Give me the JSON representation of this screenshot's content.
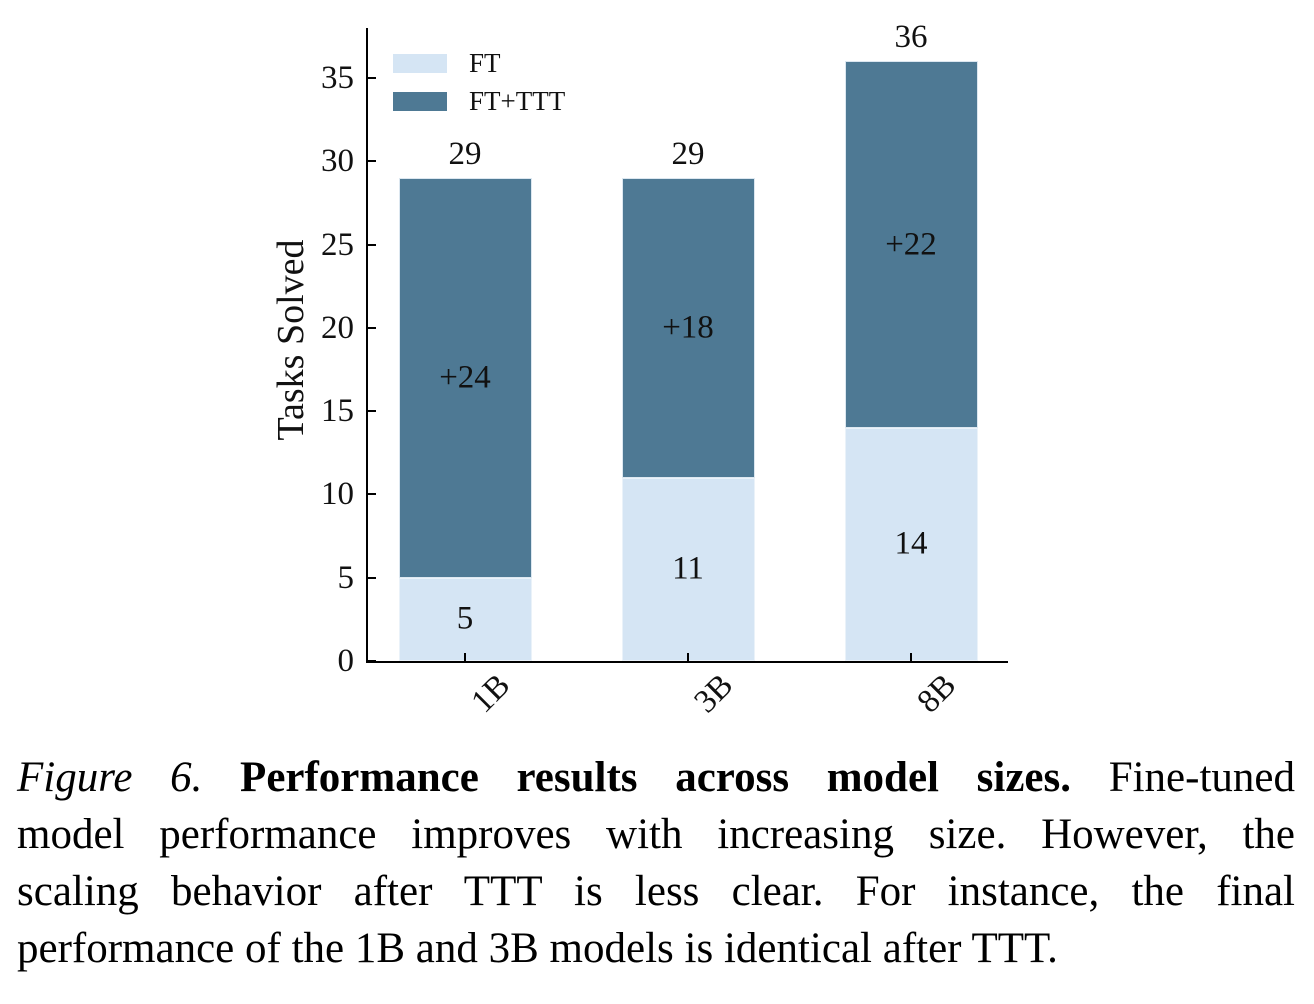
{
  "chart_data": {
    "type": "bar",
    "stacked": true,
    "title": "",
    "xlabel": "",
    "ylabel": "Tasks Solved",
    "categories": [
      "1B",
      "3B",
      "8B"
    ],
    "series": [
      {
        "name": "FT",
        "color": "#d5e5f4",
        "values": [
          5,
          11,
          14
        ],
        "bar_labels": [
          "5",
          "11",
          "14"
        ]
      },
      {
        "name": "FT+TTT",
        "color": "#4e7994",
        "values": [
          24,
          18,
          22
        ],
        "bar_labels": [
          "+24",
          "+18",
          "+22"
        ]
      }
    ],
    "totals": [
      "29",
      "29",
      "36"
    ],
    "ylim": [
      0,
      38
    ],
    "yticks": [
      0,
      5,
      10,
      15,
      20,
      25,
      30,
      35
    ],
    "legend_position": "upper left",
    "grid": false,
    "axis_color": "#000000",
    "text_color": "#111111"
  },
  "caption": {
    "lines": [
      {
        "justify": true,
        "segments": [
          {
            "text": "Figure 6. ",
            "style": "italic"
          },
          {
            "text": "Performance results across model sizes.",
            "style": "bold"
          },
          {
            "text": "  Fine-tuned",
            "style": "normal"
          }
        ]
      },
      {
        "justify": true,
        "segments": [
          {
            "text": "model performance improves with increasing size. However, the",
            "style": "normal"
          }
        ]
      },
      {
        "justify": true,
        "segments": [
          {
            "text": "scaling behavior after TTT is less clear.  For instance, the final",
            "style": "normal"
          }
        ]
      },
      {
        "justify": false,
        "segments": [
          {
            "text": "performance of the 1B and 3B models is identical after TTT.",
            "style": "normal"
          }
        ]
      }
    ]
  }
}
